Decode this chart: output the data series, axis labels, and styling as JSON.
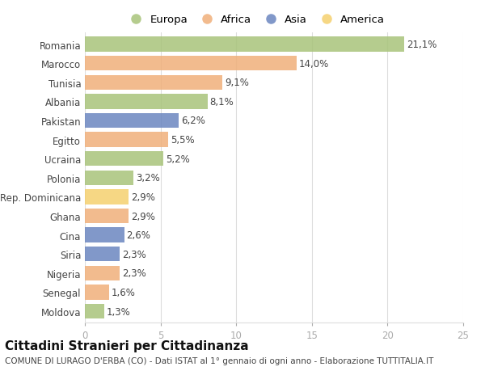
{
  "countries": [
    "Romania",
    "Marocco",
    "Tunisia",
    "Albania",
    "Pakistan",
    "Egitto",
    "Ucraina",
    "Polonia",
    "Rep. Dominicana",
    "Ghana",
    "Cina",
    "Siria",
    "Nigeria",
    "Senegal",
    "Moldova"
  ],
  "values": [
    21.1,
    14.0,
    9.1,
    8.1,
    6.2,
    5.5,
    5.2,
    3.2,
    2.9,
    2.9,
    2.6,
    2.3,
    2.3,
    1.6,
    1.3
  ],
  "labels": [
    "21,1%",
    "14,0%",
    "9,1%",
    "8,1%",
    "6,2%",
    "5,5%",
    "5,2%",
    "3,2%",
    "2,9%",
    "2,9%",
    "2,6%",
    "2,3%",
    "2,3%",
    "1,6%",
    "1,3%"
  ],
  "continents": [
    "Europa",
    "Africa",
    "Africa",
    "Europa",
    "Asia",
    "Africa",
    "Europa",
    "Europa",
    "America",
    "Africa",
    "Asia",
    "Asia",
    "Africa",
    "Africa",
    "Europa"
  ],
  "continent_colors": {
    "Europa": "#a8c47a",
    "Africa": "#f0b07a",
    "Asia": "#6b86c0",
    "America": "#f5d06e"
  },
  "legend_order": [
    "Europa",
    "Africa",
    "Asia",
    "America"
  ],
  "title": "Cittadini Stranieri per Cittadinanza",
  "subtitle": "COMUNE DI LURAGO D'ERBA (CO) - Dati ISTAT al 1° gennaio di ogni anno - Elaborazione TUTTITALIA.IT",
  "xlim": [
    0,
    25
  ],
  "xticks": [
    0,
    5,
    10,
    15,
    20,
    25
  ],
  "background_color": "#ffffff",
  "grid_color": "#dddddd",
  "bar_height": 0.78,
  "title_fontsize": 11,
  "subtitle_fontsize": 7.5,
  "label_fontsize": 8.5,
  "tick_fontsize": 8.5,
  "legend_fontsize": 9.5
}
